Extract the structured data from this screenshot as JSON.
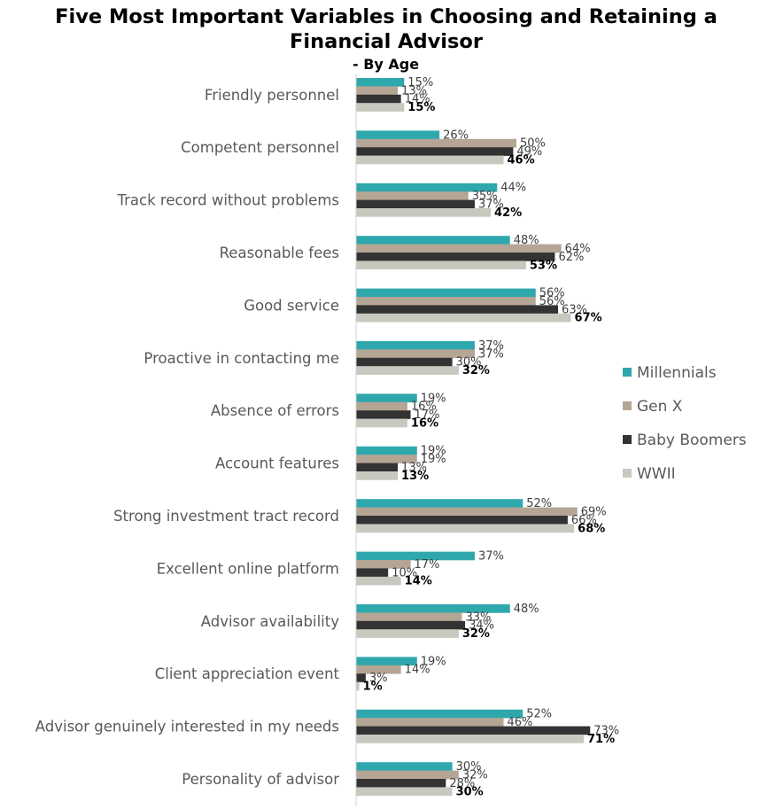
{
  "chart_data": {
    "type": "bar",
    "orientation": "horizontal",
    "title": "Five Most Important Variables in Choosing and Retaining a Financial Advisor",
    "subtitle": "- By Age",
    "categories": [
      "Friendly personnel",
      "Competent personnel",
      "Track record without problems",
      "Reasonable fees",
      "Good service",
      "Proactive in contacting me",
      "Absence of errors",
      "Account features",
      "Strong investment tract record",
      "Excellent online platform",
      "Advisor availability",
      "Client appreciation event",
      "Advisor genuinely interested in my needs",
      "Personality of advisor"
    ],
    "series": [
      {
        "name": "Millennials",
        "color": "#2fa8ad",
        "values": [
          15,
          26,
          44,
          48,
          56,
          37,
          19,
          19,
          52,
          37,
          48,
          19,
          52,
          30
        ]
      },
      {
        "name": "Gen X",
        "color": "#b4a595",
        "values": [
          13,
          50,
          35,
          64,
          56,
          37,
          16,
          19,
          69,
          17,
          33,
          14,
          46,
          32
        ]
      },
      {
        "name": "Baby Boomers",
        "color": "#333333",
        "values": [
          14,
          49,
          37,
          62,
          63,
          30,
          17,
          13,
          66,
          10,
          34,
          3,
          73,
          28
        ]
      },
      {
        "name": "WWII",
        "color": "#c8c8bf",
        "values": [
          15,
          46,
          42,
          53,
          67,
          32,
          16,
          13,
          68,
          14,
          32,
          1,
          71,
          30
        ]
      }
    ],
    "value_suffix": "%",
    "xlim": [
      0,
      100
    ],
    "legend_position": "right",
    "grid": false
  }
}
